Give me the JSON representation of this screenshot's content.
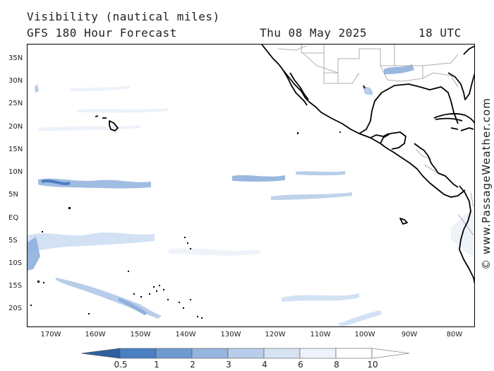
{
  "header": {
    "title": "Visibility (nautical miles)",
    "forecast": "GFS 180 Hour Forecast",
    "date": "Thu 08 May 2025",
    "time": "18 UTC"
  },
  "credit": "© www.PassageWeather.com",
  "map": {
    "lat_labels": [
      "35N",
      "30N",
      "25N",
      "20N",
      "15N",
      "10N",
      "5N",
      "EQ",
      "5S",
      "10S",
      "15S",
      "20S"
    ],
    "lon_labels": [
      "170W",
      "160W",
      "150W",
      "140W",
      "130W",
      "120W",
      "110W",
      "100W",
      "90W",
      "80W"
    ],
    "colors": {
      "land_outline": "#000000",
      "border": "#999999",
      "low_visibility": "#4a7fc1",
      "mid_visibility": "#8fb0dc",
      "light_visibility": "#d2e1f3"
    }
  },
  "colorbar": {
    "labels": [
      "0.5",
      "1",
      "2",
      "3",
      "4",
      "6",
      "8",
      "10"
    ],
    "colors": [
      "#2f5f9e",
      "#4a7fc1",
      "#6f9ad0",
      "#95b5df",
      "#b8cde9",
      "#d6e3f3",
      "#eef3fa",
      "#ffffff"
    ]
  }
}
